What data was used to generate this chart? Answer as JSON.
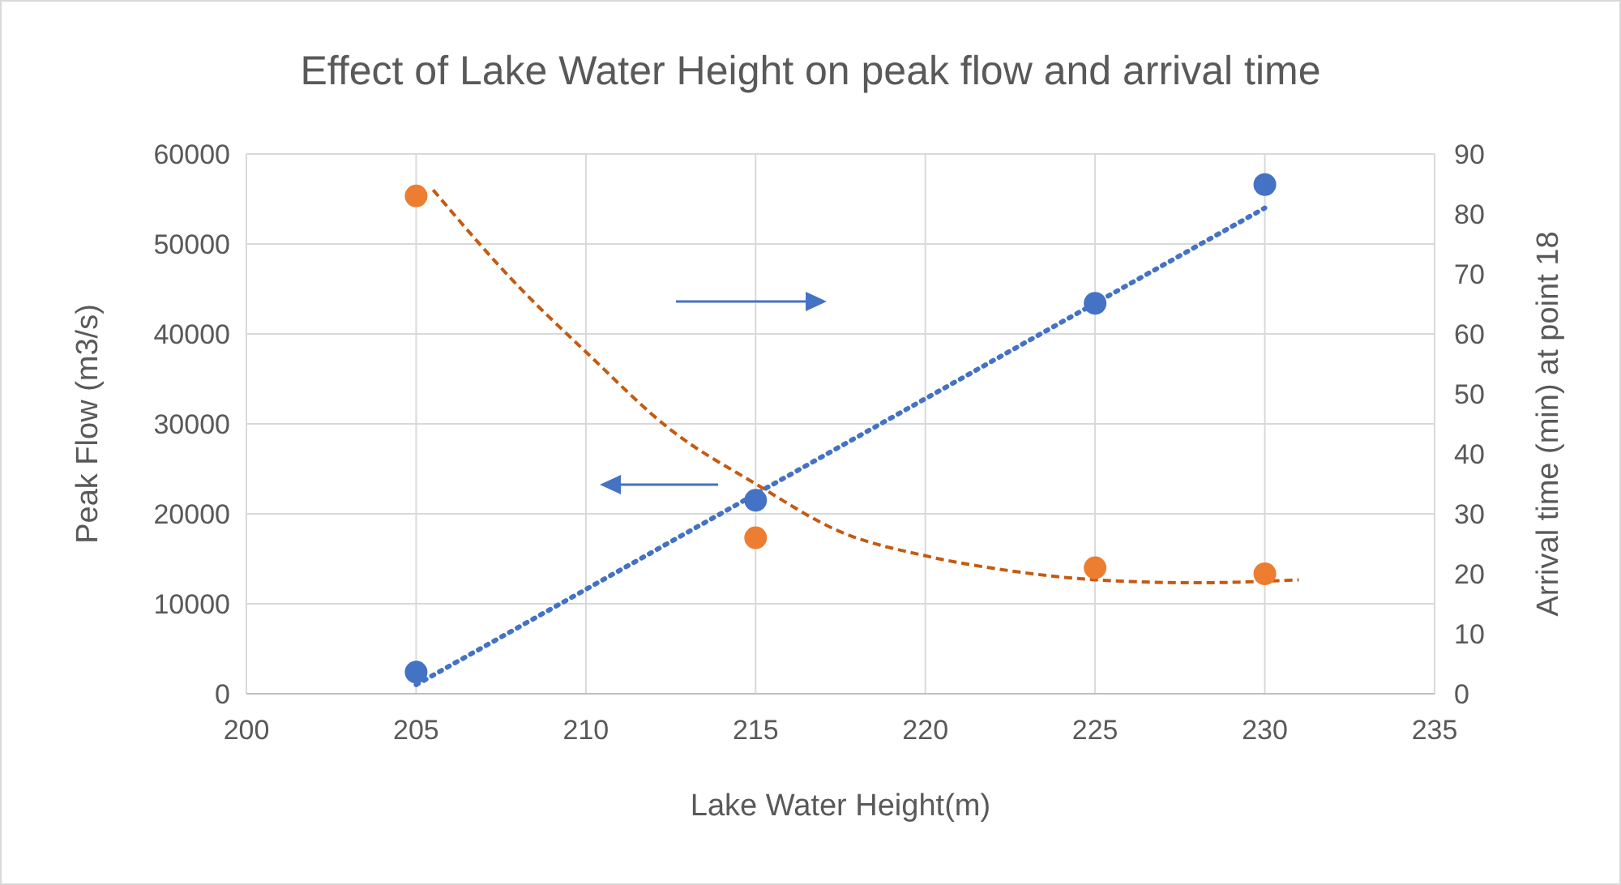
{
  "chart_data": {
    "type": "scatter",
    "title": "Effect of Lake Water Height on peak flow and arrival time",
    "xlabel": "Lake Water Height(m)",
    "ylabel": "Peak Flow (m3/s)",
    "y2label": "Arrival time (min) at point 18",
    "xlim": [
      200,
      235
    ],
    "xticks": [
      200,
      205,
      210,
      215,
      220,
      225,
      230,
      235
    ],
    "ylim": [
      0,
      60000
    ],
    "yticks": [
      0,
      10000,
      20000,
      30000,
      40000,
      50000,
      60000
    ],
    "y2lim": [
      0,
      90
    ],
    "y2ticks": [
      0,
      10,
      20,
      30,
      40,
      50,
      60,
      70,
      80,
      90
    ],
    "grid": true,
    "series": [
      {
        "color": "#4472c4",
        "marker": "circle",
        "x": [
          205,
          215,
          225,
          230
        ],
        "values": [
          2400,
          21500,
          43400,
          56600
        ]
      },
      {
        "axis": "y2",
        "color": "#ed7d31",
        "marker": "circle",
        "x": [
          205,
          215,
          225,
          230
        ],
        "values": [
          83,
          26,
          21,
          20
        ]
      },
      {
        "type": "line",
        "color": "#4472c4",
        "line_style": "dotted",
        "marker": "none",
        "x": [
          205,
          230
        ],
        "values": [
          1000,
          54000
        ]
      },
      {
        "type": "line",
        "axis": "y2",
        "color": "#c55a11",
        "line_style": "dashed",
        "marker": "none",
        "x": [
          205.5,
          208,
          210,
          212.5,
          215,
          217.5,
          220,
          222.5,
          225,
          228,
          231
        ],
        "values": [
          84,
          68,
          57,
          44,
          35,
          27,
          23,
          20.5,
          19,
          18.5,
          19
        ]
      }
    ]
  }
}
